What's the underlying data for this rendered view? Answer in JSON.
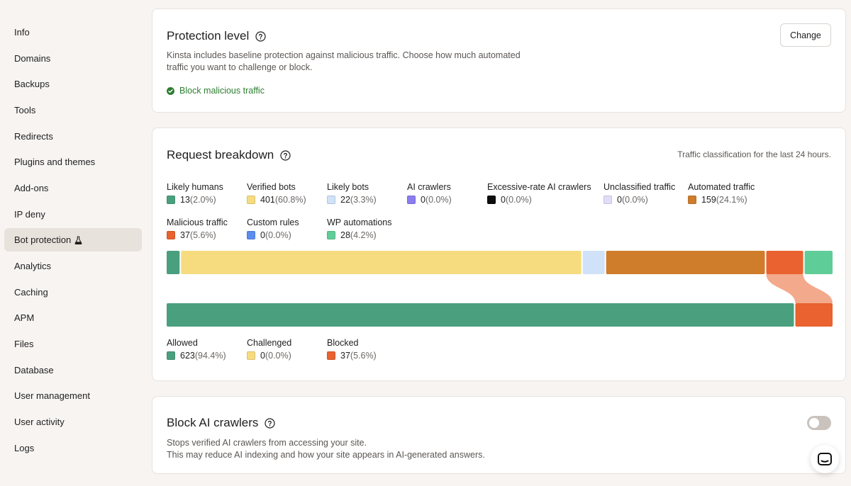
{
  "sidebar": {
    "items": [
      {
        "label": "Info"
      },
      {
        "label": "Domains"
      },
      {
        "label": "Backups"
      },
      {
        "label": "Tools"
      },
      {
        "label": "Redirects"
      },
      {
        "label": "Plugins and themes"
      },
      {
        "label": "Add-ons"
      },
      {
        "label": "IP deny"
      },
      {
        "label": "Bot protection",
        "active": true,
        "icon": "flask-icon"
      },
      {
        "label": "Analytics"
      },
      {
        "label": "Caching"
      },
      {
        "label": "APM"
      },
      {
        "label": "Files"
      },
      {
        "label": "Database"
      },
      {
        "label": "User management"
      },
      {
        "label": "User activity"
      },
      {
        "label": "Logs"
      }
    ]
  },
  "protection": {
    "title": "Protection level",
    "description_line1": "Kinsta includes baseline protection against malicious traffic. Choose how much automated",
    "description_line2": "traffic you want to challenge or block.",
    "change_label": "Change",
    "status": "Block malicious traffic",
    "status_color": "#2e7d32"
  },
  "breakdown": {
    "title": "Request breakdown",
    "subtitle": "Traffic classification for the last 24 hours.",
    "categories": [
      {
        "label": "Likely humans",
        "count": "13",
        "pct": "(2.0%)",
        "color": "#4aa07e"
      },
      {
        "label": "Verified bots",
        "count": "401",
        "pct": "(60.8%)",
        "color": "#f6dc7f"
      },
      {
        "label": "Likely bots",
        "count": "22",
        "pct": "(3.3%)",
        "color": "#cfe2f8"
      },
      {
        "label": "AI crawlers",
        "count": "0",
        "pct": "(0.0%)",
        "color": "#8b7cf0"
      },
      {
        "label": "Excessive-rate AI crawlers",
        "count": "0",
        "pct": "(0.0%)",
        "color": "#0d0d0d"
      },
      {
        "label": "Unclassified traffic",
        "count": "0",
        "pct": "(0.0%)",
        "color": "#e0defa"
      },
      {
        "label": "Automated traffic",
        "count": "159",
        "pct": "(24.1%)",
        "color": "#cf7c2b"
      },
      {
        "label": "Malicious traffic",
        "count": "37",
        "pct": "(5.6%)",
        "color": "#e9622f"
      },
      {
        "label": "Custom rules",
        "count": "0",
        "pct": "(0.0%)",
        "color": "#5b8def"
      },
      {
        "label": "WP automations",
        "count": "28",
        "pct": "(4.2%)",
        "color": "#5fcd98"
      }
    ],
    "outcomes": [
      {
        "label": "Allowed",
        "count": "623",
        "pct": "(94.4%)",
        "color": "#4aa07e"
      },
      {
        "label": "Challenged",
        "count": "0",
        "pct": "(0.0%)",
        "color": "#f6dc7f"
      },
      {
        "label": "Blocked",
        "count": "37",
        "pct": "(5.6%)",
        "color": "#e9622f"
      }
    ]
  },
  "ai_crawlers": {
    "title": "Block AI crawlers",
    "description_line1": "Stops verified AI crawlers from accessing your site.",
    "description_line2": "This may reduce AI indexing and how your site appears in AI-generated answers.",
    "toggle_on": false
  },
  "chat": {
    "icon": "chat-icon"
  }
}
